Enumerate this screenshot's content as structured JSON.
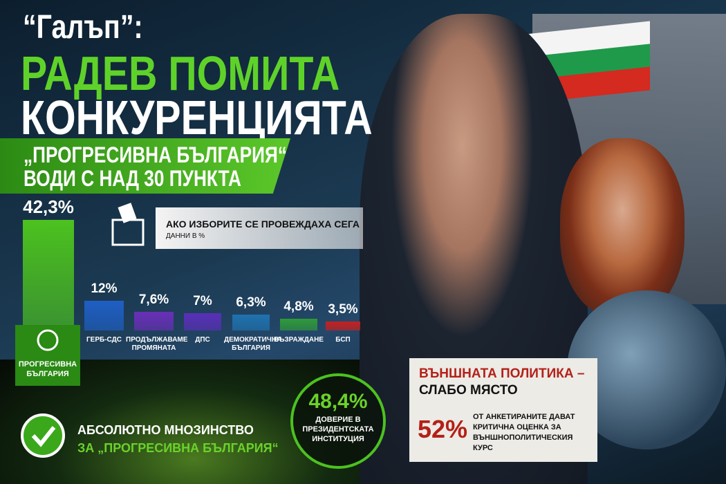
{
  "header": {
    "source": "“Галъп”:",
    "title_line1": "РАДЕВ ПОМИТА",
    "title_line2": "КОНКУРЕНЦИЯТА",
    "banner_line1": "„ПРОГРЕСИВНА БЪЛГАРИЯ“",
    "banner_line2": "ВОДИ С НАД 30 ПУНКТА"
  },
  "chart_data": {
    "type": "bar",
    "title": "АКО ИЗБОРИТЕ СЕ ПРОВЕЖДАХА СЕГА",
    "subtitle": "ДАННИ В %",
    "categories": [
      "ПРОГРЕСИВНА БЪЛГАРИЯ",
      "ГЕРБ-СДС",
      "ПРОДЪЛЖАВАМЕ ПРОМЯНАТА",
      "ДПС",
      "ДЕМОКРАТИЧНА БЪЛГАРИЯ",
      "ВЪЗРАЖДАНЕ",
      "БСП"
    ],
    "values": [
      42.3,
      12,
      7.6,
      7,
      6.3,
      4.8,
      3.5
    ],
    "value_labels": [
      "42,3%",
      "12%",
      "7,6%",
      "7%",
      "6,3%",
      "4,8%",
      "3,5%"
    ],
    "colors": [
      "#4cc21f",
      "#1f5fc4",
      "#6a2fb8",
      "#5a2fb8",
      "#1f72b0",
      "#2f9a3a",
      "#c42020"
    ]
  },
  "majority": {
    "line1": "АБСОЛЮТНО МНОЗИНСТВО",
    "line2": "ЗА „ПРОГРЕСИВНА БЪЛГАРИЯ“"
  },
  "trust": {
    "value_label": "48,4%",
    "text": "ДОВЕРИЕ В ПРЕЗИДЕНТСКАТА ИНСТИТУЦИЯ"
  },
  "foreign_policy": {
    "title_line1": "ВЪНШНАТА ПОЛИТИКА –",
    "title_line2": "СЛАБО МЯСТО",
    "value_label": "52%",
    "text": "ОТ АНКЕТИРАНИТЕ ДАВАТ КРИТИЧНА ОЦЕНКА ЗА ВЪНШНОПОЛИТИЧЕСКИЯ КУРС"
  }
}
